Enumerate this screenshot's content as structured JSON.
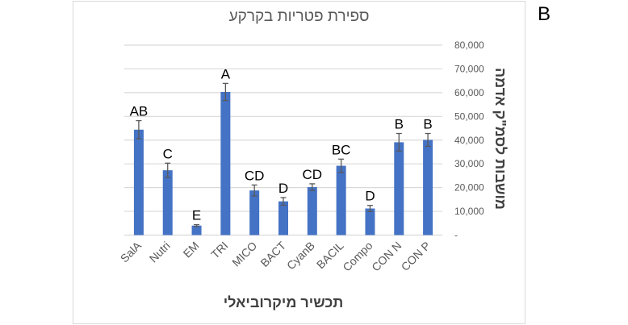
{
  "panel_label": "B",
  "chart_data": {
    "type": "bar",
    "title": "ספירת פטריות בקרקע",
    "xlabel": "תכשיר מיקרוביאלי",
    "ylabel": "מושבות לסמ\"ק אדמה",
    "ylim": [
      0,
      80000
    ],
    "yticks": [
      0,
      10000,
      20000,
      30000,
      40000,
      50000,
      60000,
      70000,
      80000
    ],
    "ytick_labels": [
      "-",
      "10,000",
      "20,000",
      "30,000",
      "40,000",
      "50,000",
      "60,000",
      "70,000",
      "80,000"
    ],
    "y_axis_position": "right",
    "grid": true,
    "legend": null,
    "bar_color": "#4472C4",
    "categories": [
      "SalA",
      "Nutri",
      "EM",
      "TRI",
      "MICO",
      "BACT",
      "CyanB",
      "BACIL",
      "Compo",
      "CON N",
      "CON P"
    ],
    "values": [
      44400,
      27300,
      4000,
      60300,
      18800,
      14200,
      20200,
      29200,
      11200,
      39100,
      40100
    ],
    "error": [
      3800,
      3000,
      400,
      3600,
      2300,
      1600,
      1400,
      2800,
      1300,
      3700,
      2700
    ],
    "annotations": [
      "AB",
      "C",
      "E",
      "A",
      "CD",
      "D",
      "CD",
      "BC",
      "D",
      "B",
      "B"
    ]
  }
}
